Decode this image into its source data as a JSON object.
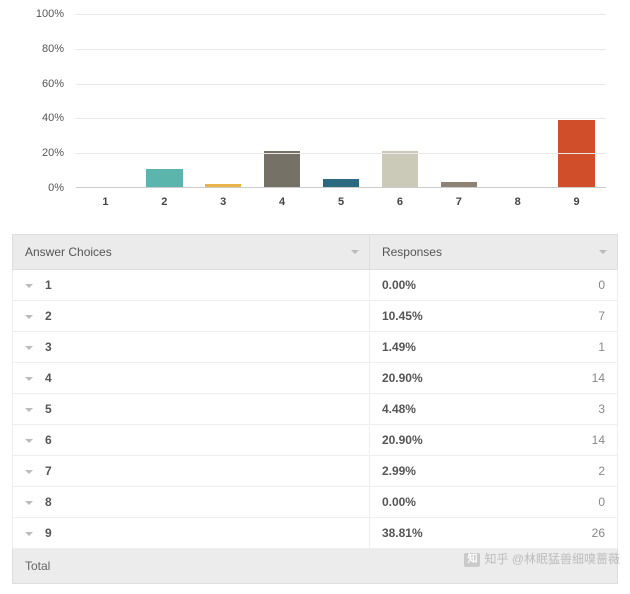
{
  "chart": {
    "type": "bar",
    "ylim": [
      0,
      100
    ],
    "ytick_step": 20,
    "ytick_suffix": "%",
    "grid_color": "#e8e8e8",
    "axis_color": "#cccccc",
    "background_color": "#ffffff",
    "label_fontsize": 11,
    "label_color": "#555555",
    "xlabel_fontweight": 700,
    "bar_width_pct": 62,
    "categories": [
      "1",
      "2",
      "3",
      "4",
      "5",
      "6",
      "7",
      "8",
      "9"
    ],
    "values": [
      0.0,
      10.45,
      1.49,
      20.9,
      4.48,
      20.9,
      2.99,
      0.0,
      38.81
    ],
    "bar_colors": [
      "#6a8f87",
      "#5cb5ad",
      "#eab349",
      "#757167",
      "#2b6980",
      "#cbcab8",
      "#8d8273",
      "#4f6a5f",
      "#d14e2a"
    ]
  },
  "table": {
    "header": {
      "choices": "Answer Choices",
      "responses": "Responses"
    },
    "header_bg": "#ebebeb",
    "row_border": "#eeeeee",
    "caret_color": "#bbbbbb",
    "rows": [
      {
        "label": "1",
        "pct": "0.00%",
        "count": 0
      },
      {
        "label": "2",
        "pct": "10.45%",
        "count": 7
      },
      {
        "label": "3",
        "pct": "1.49%",
        "count": 1
      },
      {
        "label": "4",
        "pct": "20.90%",
        "count": 14
      },
      {
        "label": "5",
        "pct": "4.48%",
        "count": 3
      },
      {
        "label": "6",
        "pct": "20.90%",
        "count": 14
      },
      {
        "label": "7",
        "pct": "2.99%",
        "count": 2
      },
      {
        "label": "8",
        "pct": "0.00%",
        "count": 0
      },
      {
        "label": "9",
        "pct": "38.81%",
        "count": 26
      }
    ],
    "total_label": "Total"
  },
  "watermark": {
    "glyph": "知",
    "prefix": "知乎",
    "text": "@林眠猛兽细嗅蔷薇"
  }
}
